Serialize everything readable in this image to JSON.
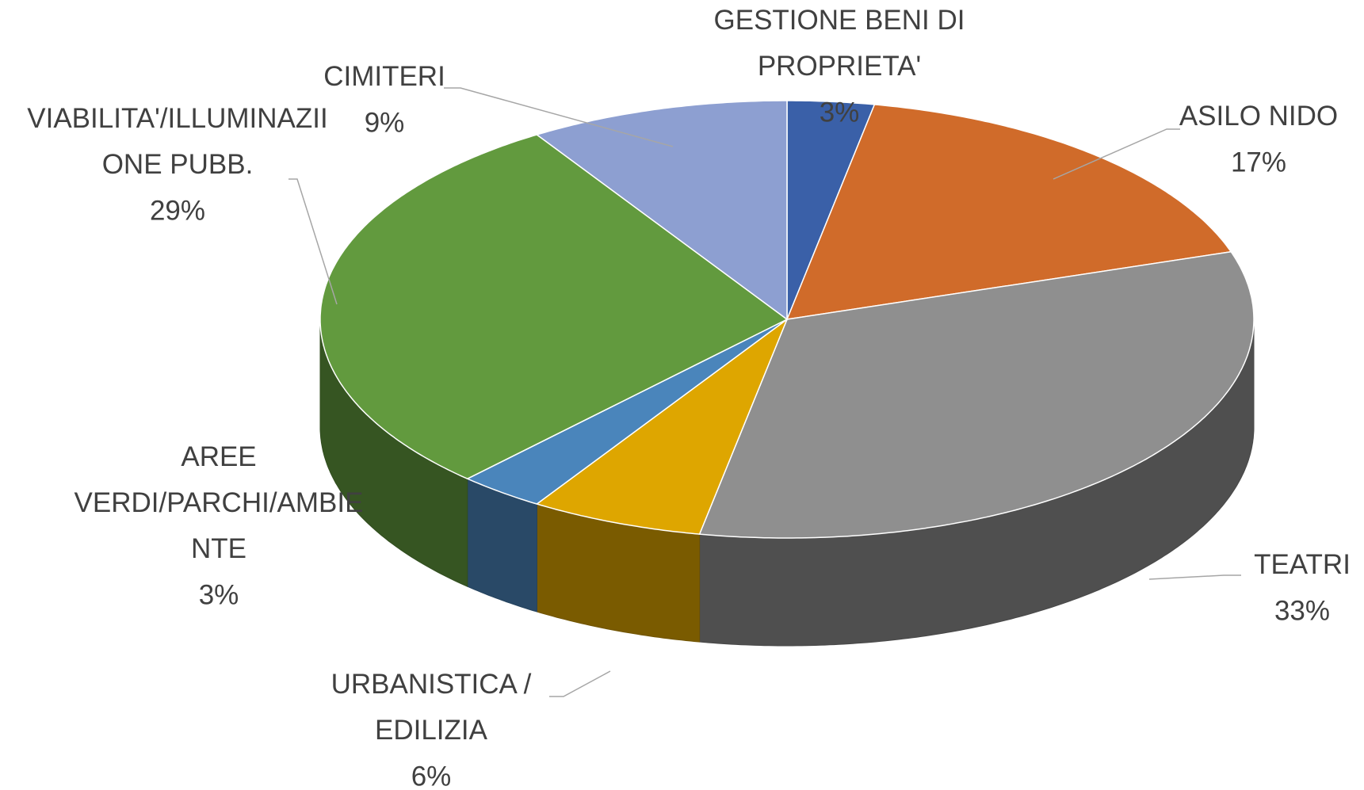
{
  "chart_data": {
    "type": "pie3d",
    "categories": [
      "GESTIONE BENI DI PROPRIETA'",
      "ASILO NIDO",
      "TEATRI",
      "URBANISTICA / EDILIZIA",
      "AREE VERDI/PARCHI/AMBIENTE",
      "VIABILITA'/ILLUMINAZIIONE PUBB.",
      "CIMITERI"
    ],
    "values": [
      3,
      17,
      33,
      6,
      3,
      29,
      9
    ],
    "value_labels": [
      "3%",
      "17%",
      "33%",
      "6%",
      "3%",
      "29%",
      "9%"
    ],
    "colors": [
      "#3a60a8",
      "#d06b2a",
      "#8f8f8f",
      "#dea600",
      "#4a85bb",
      "#629a3e",
      "#8d9fd1"
    ]
  }
}
